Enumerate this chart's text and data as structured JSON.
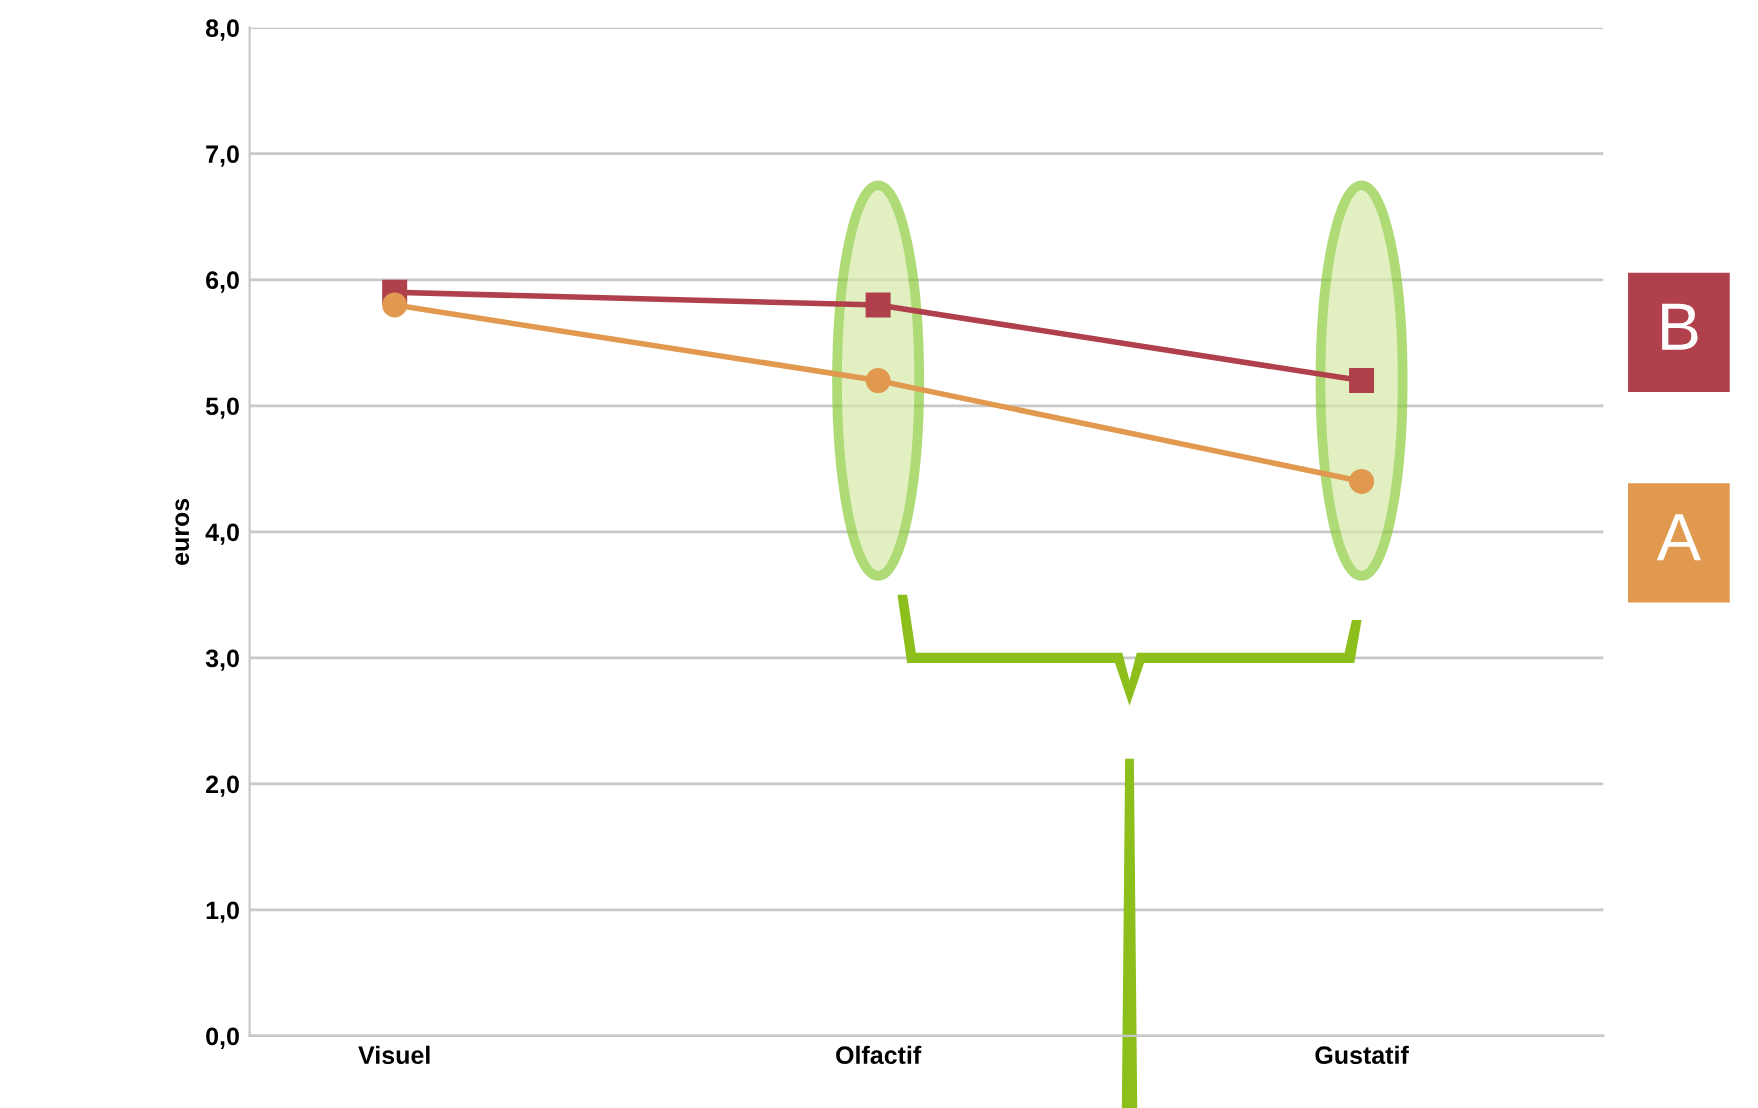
{
  "chart_data": {
    "type": "line",
    "ylabel": "euros",
    "categories": [
      "Visuel",
      "Olfactif",
      "Gustatif"
    ],
    "series": [
      {
        "name": "B",
        "color": "#b0404c",
        "marker": "square",
        "values": [
          5.9,
          5.8,
          5.2
        ]
      },
      {
        "name": "A",
        "color": "#e0994f",
        "marker": "circle",
        "values": [
          5.8,
          5.2,
          4.4
        ]
      }
    ],
    "ylim": [
      0,
      8
    ],
    "yticks": [
      {
        "value": 0,
        "label": "0,0"
      },
      {
        "value": 1,
        "label": "1,0"
      },
      {
        "value": 2,
        "label": "2,0"
      },
      {
        "value": 3,
        "label": "3,0"
      },
      {
        "value": 4,
        "label": "4,0"
      },
      {
        "value": 5,
        "label": "5,0"
      },
      {
        "value": 6,
        "label": "6,0"
      },
      {
        "value": 7,
        "label": "7,0"
      },
      {
        "value": 8,
        "label": "8,0"
      }
    ],
    "grid": "y",
    "legend": "right"
  }
}
